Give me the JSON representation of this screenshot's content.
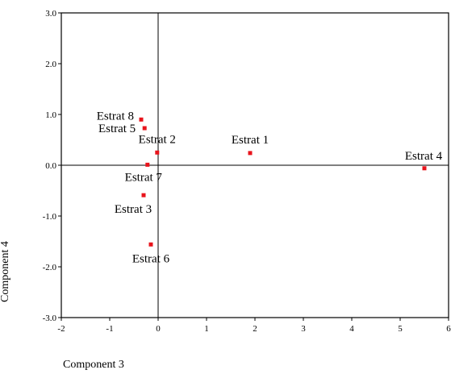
{
  "chart_data": {
    "type": "scatter",
    "title": "",
    "xlabel": "Component 3",
    "ylabel": "Component 4",
    "xlim": [
      -2,
      6
    ],
    "ylim": [
      -3,
      3
    ],
    "x_ticks": [
      "-2",
      "-1",
      "0",
      "1",
      "2",
      "3",
      "4",
      "5",
      "6"
    ],
    "y_ticks": [
      "3.0",
      "2.0",
      "1.0",
      "0.0",
      "-1.0",
      "-2.0",
      "-3.0"
    ],
    "reference_lines": {
      "x": 0,
      "y": 0
    },
    "grid": false,
    "marker_color": "#e8141c",
    "points": [
      {
        "label": "Estrat 1",
        "x": 1.9,
        "y": 0.24
      },
      {
        "label": "Estrat 2",
        "x": -0.02,
        "y": 0.25
      },
      {
        "label": "Estrat 3",
        "x": -0.3,
        "y": -0.59
      },
      {
        "label": "Estrat 4",
        "x": 5.5,
        "y": -0.06
      },
      {
        "label": "Estrat 5",
        "x": -0.28,
        "y": 0.73
      },
      {
        "label": "Estrat 6",
        "x": -0.15,
        "y": -1.56
      },
      {
        "label": "Estrat 7",
        "x": -0.22,
        "y": 0.01
      },
      {
        "label": "Estrat 8",
        "x": -0.35,
        "y": 0.9
      }
    ]
  }
}
